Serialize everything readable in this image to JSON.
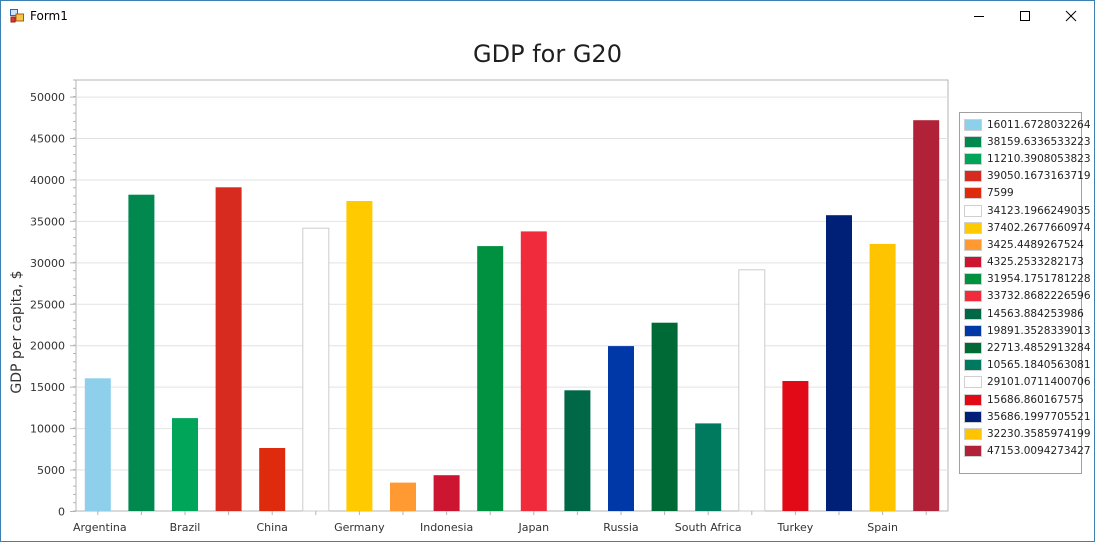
{
  "window": {
    "title": "Form1",
    "controls": {
      "minimize": "minimize-icon",
      "maximize": "maximize-icon",
      "close": "close-icon"
    }
  },
  "chart_data": {
    "type": "bar",
    "title": "GDP for G20",
    "xlabel": "",
    "ylabel": "GDP per capita, $",
    "ylim": [
      0,
      52000
    ],
    "yticks": [
      0,
      5000,
      10000,
      15000,
      20000,
      25000,
      30000,
      35000,
      40000,
      45000,
      50000
    ],
    "grid": true,
    "legend_position": "right",
    "categories": [
      "Argentina",
      "",
      "Brazil",
      "",
      "China",
      "",
      "Germany",
      "",
      "Indonesia",
      "",
      "Japan",
      "",
      "Russia",
      "",
      "South Africa",
      "",
      "Turkey",
      "",
      "Spain",
      ""
    ],
    "values": [
      16011.6728032264,
      38159.6336533223,
      11210.3908053823,
      39050.1673163719,
      7599,
      34123.1966249035,
      37402.2677660974,
      3425.4489267524,
      4325.2533282173,
      31954.1751781228,
      33732.8682226596,
      14563.884253986,
      19891.3528339013,
      22713.4852913284,
      10565.1840563081,
      29101.0711400706,
      15686.860167575,
      35686.1997705521,
      32230.3585974199,
      47153.0094273427
    ],
    "colors": [
      "#8ecfec",
      "#00884f",
      "#00a55a",
      "#d82b20",
      "#de2b0e",
      "#ffffff",
      "#ffcb00",
      "#ff9a33",
      "#cc1530",
      "#009140",
      "#ef2b3c",
      "#006847",
      "#0038a8",
      "#006a37",
      "#007a5e",
      "#ffffff",
      "#e30a17",
      "#002078",
      "#ffc400",
      "#b12238"
    ],
    "legend": [
      "16011.6728032264",
      "38159.6336533223",
      "11210.3908053823",
      "39050.1673163719",
      "7599",
      "34123.1966249035",
      "37402.2677660974",
      "3425.4489267524",
      "4325.2533282173",
      "31954.1751781228",
      "33732.8682226596",
      "14563.884253986",
      "19891.3528339013",
      "22713.4852913284",
      "10565.1840563081",
      "29101.0711400706",
      "15686.860167575",
      "35686.1997705521",
      "32230.3585974199",
      "47153.0094273427"
    ]
  }
}
